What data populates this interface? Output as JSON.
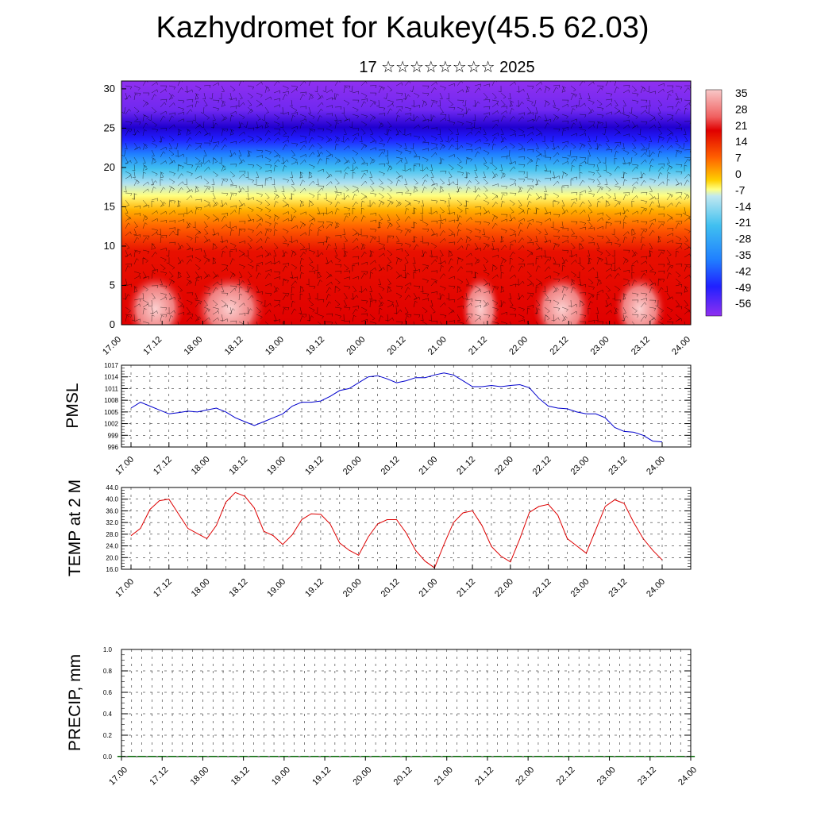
{
  "header": {
    "title": "Kazhydromet for Kaukey(45.5 62.03)",
    "subtitle": "17 ☆☆☆☆☆☆☆☆ 2025"
  },
  "chart_data": [
    {
      "id": "cross-section",
      "type": "heatmap",
      "title": "",
      "xlabel": "",
      "ylabel": "",
      "x_ticks": [
        "17.00",
        "17.12",
        "18.00",
        "18.12",
        "19.00",
        "19.12",
        "20.00",
        "20.12",
        "21.00",
        "21.12",
        "22.00",
        "22.12",
        "23.00",
        "23.12",
        "24.00"
      ],
      "y_ticks": [
        0,
        5,
        10,
        15,
        20,
        25,
        30
      ],
      "ylim": [
        0,
        31
      ],
      "colorbar_labels": [
        "35",
        "28",
        "21",
        "14",
        "7",
        "0",
        "-7",
        "-14",
        "-21",
        "-28",
        "-35",
        "-42",
        "-49",
        "-56"
      ],
      "colors": {
        "warm_max": "#f8c8c8",
        "warm": "#e00000",
        "orange": "#ff8000",
        "yellow": "#ffff80",
        "cyan": "#40c0f0",
        "blue": "#2020ff",
        "violet": "#9030f0"
      },
      "overlay": "wind barbs"
    },
    {
      "id": "pmsl",
      "type": "line",
      "title": "",
      "ylabel": "PMSL",
      "x_ticks": [
        "17.00",
        "17.12",
        "18.00",
        "18.12",
        "19.00",
        "19.12",
        "20.00",
        "20.12",
        "21.00",
        "21.12",
        "22.00",
        "22.12",
        "23.00",
        "23.12",
        "24.00"
      ],
      "y_ticks": [
        "996",
        "999",
        "1002",
        "1005",
        "1008",
        "1011",
        "1014",
        "1017"
      ],
      "ylim": [
        996,
        1017
      ],
      "color": "#0000cc",
      "x_hours": [
        0,
        3,
        6,
        9,
        12,
        15,
        18,
        21,
        24,
        27,
        30,
        33,
        36,
        39,
        42,
        45,
        48,
        51,
        54,
        57,
        60,
        63,
        66,
        69,
        72,
        75,
        78,
        81,
        84,
        87,
        90,
        93,
        96,
        99,
        102,
        105,
        108,
        111,
        114,
        117,
        120,
        123,
        126,
        129,
        132,
        135,
        138,
        141,
        144,
        147,
        150,
        153,
        156,
        159,
        162,
        165,
        168
      ],
      "values": [
        1006.0,
        1007.5,
        1006.5,
        1005.5,
        1004.5,
        1004.8,
        1005.2,
        1005.0,
        1005.5,
        1006.0,
        1005.0,
        1003.5,
        1002.5,
        1001.5,
        1002.5,
        1003.5,
        1004.5,
        1006.5,
        1007.5,
        1007.5,
        1007.8,
        1009.0,
        1010.5,
        1011.0,
        1012.5,
        1014.0,
        1014.3,
        1013.5,
        1012.5,
        1013.0,
        1013.8,
        1013.8,
        1014.5,
        1015.0,
        1014.5,
        1013.0,
        1011.5,
        1011.5,
        1011.8,
        1011.5,
        1011.8,
        1012.0,
        1011.2,
        1008.5,
        1006.5,
        1006.0,
        1005.8,
        1005.0,
        1004.5,
        1004.5,
        1003.5,
        1001.0,
        1000.0,
        999.8,
        999.0,
        997.5,
        997.3
      ]
    },
    {
      "id": "temp2m",
      "type": "line",
      "title": "",
      "ylabel": "TEMP at 2 M",
      "x_ticks": [
        "17.00",
        "17.12",
        "18.00",
        "18.12",
        "19.00",
        "19.12",
        "20.00",
        "20.12",
        "21.00",
        "21.12",
        "22.00",
        "22.12",
        "23.00",
        "23.12",
        "24.00"
      ],
      "y_ticks": [
        "16.0",
        "20.0",
        "24.0",
        "28.0",
        "32.0",
        "36.0",
        "40.0",
        "44.0"
      ],
      "ylim": [
        16,
        44
      ],
      "color": "#dd0000",
      "x_hours": [
        0,
        3,
        6,
        9,
        12,
        15,
        18,
        21,
        24,
        27,
        30,
        33,
        36,
        39,
        42,
        45,
        48,
        51,
        54,
        57,
        60,
        63,
        66,
        69,
        72,
        75,
        78,
        81,
        84,
        87,
        90,
        93,
        96,
        99,
        102,
        105,
        108,
        111,
        114,
        117,
        120,
        123,
        126,
        129,
        132,
        135,
        138,
        141,
        144,
        147,
        150,
        153,
        156,
        159,
        162,
        165,
        168
      ],
      "values": [
        27.5,
        30.0,
        36.5,
        39.5,
        40.0,
        35.0,
        30.0,
        28.2,
        26.5,
        31.0,
        39.0,
        42.3,
        41.0,
        37.0,
        29.0,
        27.5,
        24.5,
        27.8,
        33.0,
        35.0,
        34.8,
        31.5,
        25.0,
        22.5,
        20.8,
        27.0,
        31.5,
        33.0,
        33.0,
        28.5,
        22.5,
        18.8,
        16.5,
        24.5,
        32.0,
        35.3,
        36.0,
        31.0,
        23.8,
        20.5,
        18.5,
        26.5,
        35.5,
        37.5,
        38.2,
        34.5,
        26.5,
        24.0,
        21.5,
        29.5,
        37.5,
        39.8,
        38.5,
        32.0,
        26.5,
        22.5,
        19.2
      ]
    },
    {
      "id": "precip",
      "type": "bar",
      "title": "",
      "ylabel": "PRECIP, mm",
      "x_ticks": [
        "17.00",
        "17.12",
        "18.00",
        "18.12",
        "19.00",
        "19.12",
        "20.00",
        "20.12",
        "21.00",
        "21.12",
        "22.00",
        "22.12",
        "23.00",
        "23.12",
        "24.00"
      ],
      "y_ticks": [
        "0.0",
        "0.2",
        "0.4",
        "0.6",
        "0.8",
        "1.0"
      ],
      "ylim": [
        0,
        1
      ],
      "color": "#006400",
      "values": [
        0,
        0,
        0,
        0,
        0,
        0,
        0,
        0,
        0,
        0,
        0,
        0,
        0,
        0,
        0,
        0,
        0,
        0,
        0,
        0,
        0,
        0,
        0,
        0,
        0,
        0,
        0,
        0,
        0,
        0,
        0,
        0,
        0,
        0,
        0,
        0,
        0,
        0,
        0,
        0,
        0,
        0,
        0,
        0,
        0,
        0,
        0,
        0,
        0,
        0,
        0,
        0,
        0,
        0,
        0,
        0,
        0
      ]
    }
  ]
}
